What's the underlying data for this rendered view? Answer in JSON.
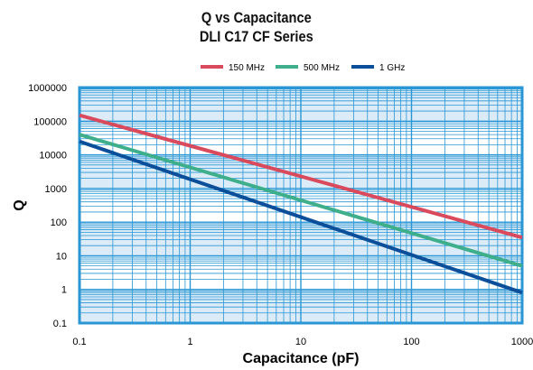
{
  "title": "Q vs Capacitance",
  "subtitle": "DLI C17 CF Series",
  "colors": {
    "background": "#ffffff",
    "plot_fill": "#ffffff",
    "band_fill": "#dcebf8",
    "grid": "#2a97d4",
    "frame": "#2a97d4"
  },
  "chart_data": {
    "type": "line",
    "title": "Q vs Capacitance",
    "subtitle": "DLI C17 CF Series",
    "xlabel": "Capacitance (pF)",
    "ylabel": "Q",
    "x_scale": "log",
    "y_scale": "log",
    "xlim": [
      0.1,
      1000
    ],
    "ylim": [
      0.1,
      1000000
    ],
    "x_ticks": [
      "0.1",
      "1",
      "10",
      "100",
      "1000"
    ],
    "y_ticks": [
      "0.1",
      "1",
      "10",
      "100",
      "1000",
      "10000",
      "100000",
      "1000000"
    ],
    "grid": true,
    "legend_position": "top-center",
    "series": [
      {
        "name": "150 MHz",
        "color": "#d94a5c",
        "x": [
          0.1,
          1000
        ],
        "y": [
          150000,
          35
        ]
      },
      {
        "name": "500 MHz",
        "color": "#3fae8a",
        "x": [
          0.1,
          1000
        ],
        "y": [
          40000,
          5
        ]
      },
      {
        "name": "1 GHz",
        "color": "#0b4e99",
        "x": [
          0.1,
          1000
        ],
        "y": [
          25000,
          0.8
        ]
      }
    ]
  }
}
